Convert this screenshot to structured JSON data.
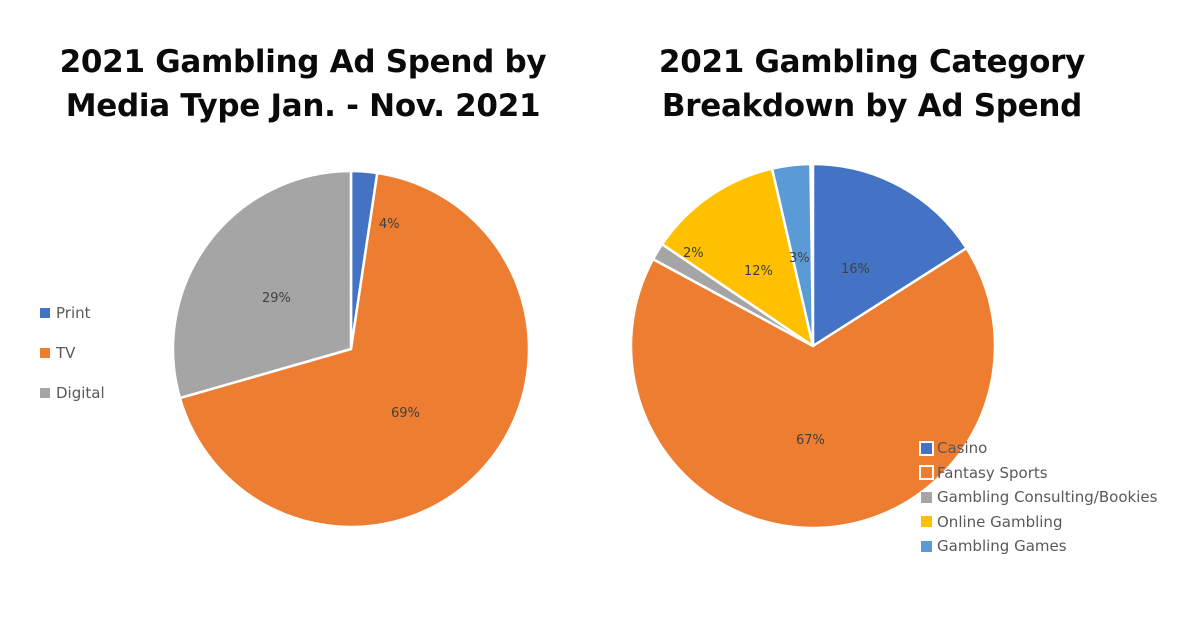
{
  "chart_data": [
    {
      "type": "pie",
      "title": "2021 Gambling Ad Spend by Media Type Jan. - Nov. 2021",
      "title_lines": [
        "2021 Gambling Ad Spend by",
        "Media Type Jan. - Nov. 2021"
      ],
      "categories": [
        "Print",
        "TV",
        "Digital"
      ],
      "values": [
        4,
        69,
        29
      ],
      "labels": [
        "4%",
        "69%",
        "29%"
      ],
      "colors": [
        "#4472C4",
        "#ED7D31",
        "#A5A5A5"
      ],
      "legend_position": "left"
    },
    {
      "type": "pie",
      "title": "2021 Gambling Category Breakdown by Ad Spend",
      "title_lines": [
        "2021 Gambling Category",
        "Breakdown by Ad Spend"
      ],
      "categories": [
        "Casino",
        "Fantasy Sports",
        "Gambling Consulting/Bookies",
        "Online Gambling",
        "Gambling Games"
      ],
      "values": [
        16,
        67,
        2,
        12,
        3
      ],
      "labels": [
        "16%",
        "67%",
        "2%",
        "12%",
        "3%"
      ],
      "colors": [
        "#4472C4",
        "#ED7D31",
        "#A5A5A5",
        "#FFC000",
        "#5B9BD5"
      ],
      "legend_position": "bottom-right"
    }
  ],
  "left": {
    "title_line1": "2021 Gambling Ad Spend by",
    "title_line2": "Media Type Jan. - Nov. 2021",
    "legend": [
      "Print",
      "TV",
      "Digital"
    ],
    "labels": {
      "print": "4%",
      "tv": "69%",
      "digital": "29%"
    }
  },
  "right": {
    "title_line1": "2021 Gambling Category",
    "title_line2": "Breakdown by Ad Spend",
    "legend": [
      "Casino",
      "Fantasy Sports",
      "Gambling Consulting/Bookies",
      "Online Gambling",
      "Gambling Games"
    ],
    "labels": {
      "casino": "16%",
      "fantasy": "67%",
      "consulting": "2%",
      "online": "12%",
      "games": "3%"
    }
  },
  "colors": {
    "blue": "#4472C4",
    "orange": "#ED7D31",
    "gray": "#A5A5A5",
    "yellow": "#FFC000",
    "lightblue": "#5B9BD5"
  }
}
